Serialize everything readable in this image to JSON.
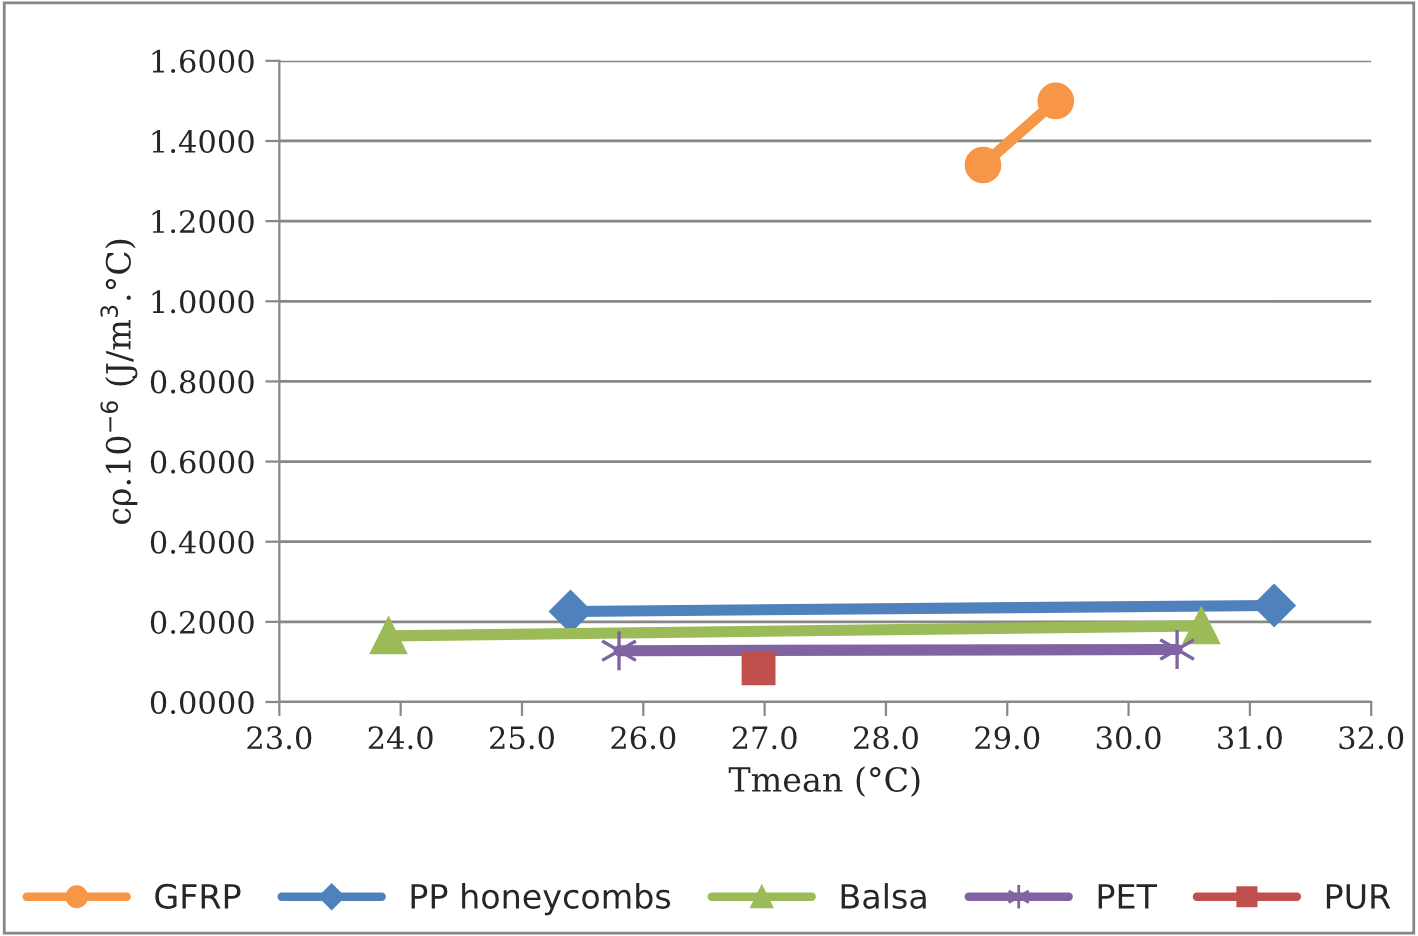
{
  "chart_data": {
    "type": "line",
    "xlabel": "Tmean (°C)",
    "ylabel": "cρ.10$^{−6}$ (J/m$^{3}$.°C)",
    "xlim": [
      23,
      32
    ],
    "xticks": [
      {
        "value": 23,
        "label": "23.0"
      },
      {
        "value": 24,
        "label": "24.0"
      },
      {
        "value": 25,
        "label": "25.0"
      },
      {
        "value": 26,
        "label": "26.0"
      },
      {
        "value": 27,
        "label": "27.0"
      },
      {
        "value": 28,
        "label": "28.0"
      },
      {
        "value": 29,
        "label": "29.0"
      },
      {
        "value": 30,
        "label": "30.0"
      },
      {
        "value": 31,
        "label": "31.0"
      },
      {
        "value": 32,
        "label": "32.0"
      }
    ],
    "ylim": [
      0,
      1.6
    ],
    "yticks": [
      {
        "value": 0,
        "label": "0.0000"
      },
      {
        "value": 0.2,
        "label": "0.2000"
      },
      {
        "value": 0.4,
        "label": "0.4000"
      },
      {
        "value": 0.6,
        "label": "0.6000"
      },
      {
        "value": 0.8,
        "label": "0.8000"
      },
      {
        "value": 1.0,
        "label": "1.0000"
      },
      {
        "value": 1.2,
        "label": "1.2000"
      },
      {
        "value": 1.4,
        "label": "1.4000"
      },
      {
        "value": 1.6,
        "label": "1.6000"
      }
    ],
    "grid": "y",
    "legend": "bottom",
    "series": [
      {
        "name": "GFRP",
        "color": "#f79646",
        "marker": "circle",
        "x": [
          28.8,
          29.4
        ],
        "values": [
          1.34,
          1.5
        ]
      },
      {
        "name": "PP honeycombs",
        "color": "#4f81bd",
        "marker": "diamond",
        "x": [
          25.4,
          31.2
        ],
        "values": [
          0.226,
          0.241
        ]
      },
      {
        "name": "Balsa",
        "color": "#9bbb59",
        "marker": "triangle",
        "x": [
          23.9,
          30.6
        ],
        "values": [
          0.165,
          0.19
        ]
      },
      {
        "name": "PET",
        "color": "#8064a2",
        "marker": "cross",
        "x": [
          25.8,
          30.4
        ],
        "values": [
          0.128,
          0.131
        ]
      },
      {
        "name": "PUR",
        "color": "#c0504d",
        "marker": "square",
        "x": [
          26.95
        ],
        "values": [
          0.084
        ]
      }
    ]
  }
}
